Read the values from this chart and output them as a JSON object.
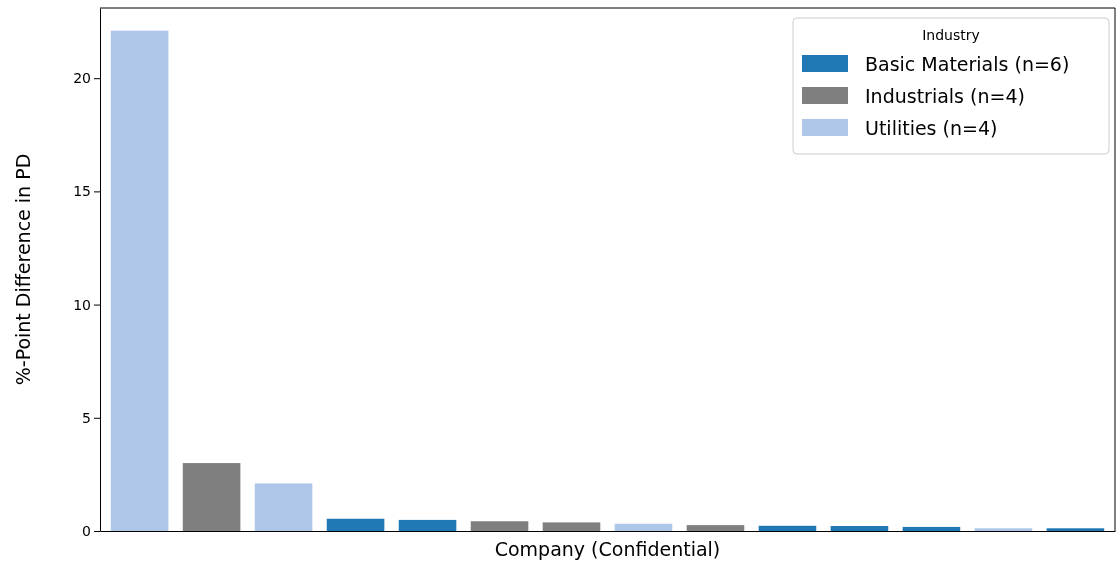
{
  "chart_data": {
    "type": "bar",
    "xlabel": "Company (Confidential)",
    "ylabel": "%-Point Difference in PD",
    "legend_title": "Industry",
    "legend": "top right",
    "categories": [
      null,
      null,
      null,
      null,
      null,
      null,
      null,
      null,
      null,
      null,
      null,
      null,
      null,
      null
    ],
    "series": [
      {
        "name": "Basic Materials (n=6)",
        "color": "#1f77b4",
        "values": [
          null,
          null,
          null,
          0.54,
          0.49,
          null,
          null,
          null,
          null,
          0.23,
          0.22,
          0.18,
          null,
          0.12
        ]
      },
      {
        "name": "Industrials (n=4)",
        "color": "#7f7f7f",
        "values": [
          null,
          3.0,
          null,
          null,
          null,
          0.43,
          0.38,
          null,
          0.26,
          null,
          null,
          null,
          null,
          null
        ]
      },
      {
        "name": "Utilities (n=4)",
        "color": "#aec7e8",
        "values": [
          22.1,
          null,
          2.1,
          null,
          null,
          null,
          null,
          0.32,
          null,
          null,
          null,
          null,
          0.12,
          null
        ]
      }
    ],
    "ylim": [
      0,
      23.1
    ],
    "yticks": [
      0,
      5,
      10,
      15,
      20
    ],
    "grid": false
  }
}
